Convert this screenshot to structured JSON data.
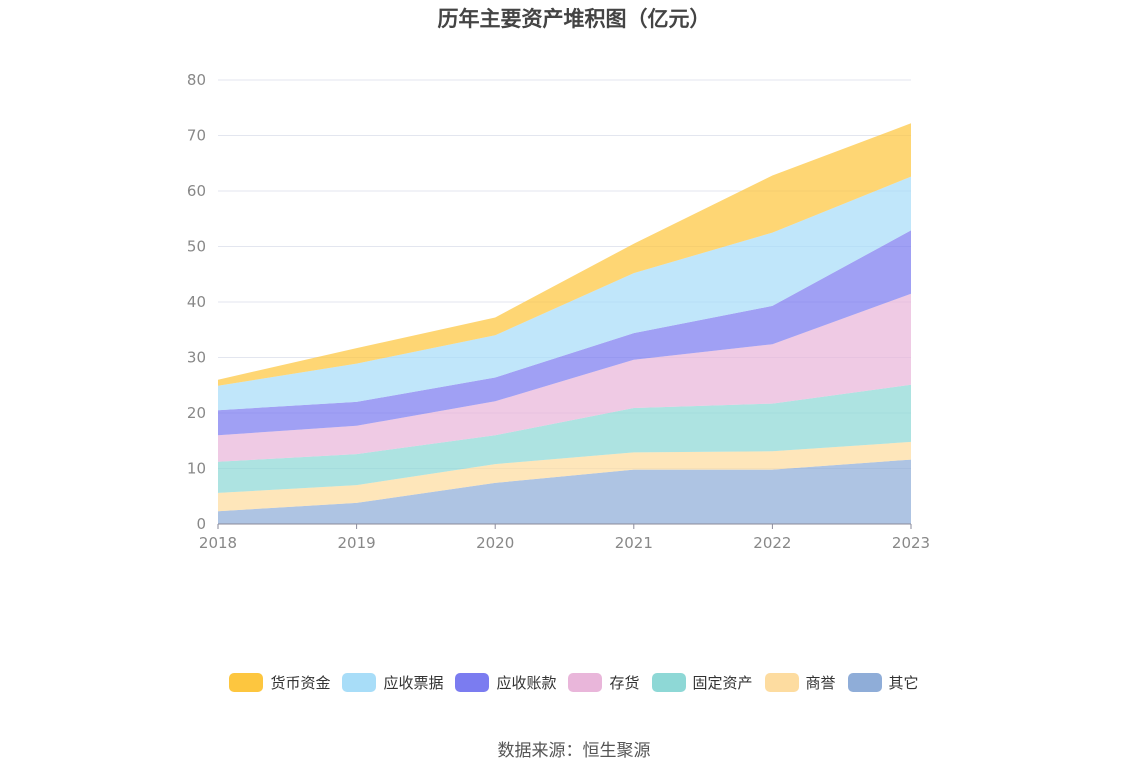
{
  "chart_data": {
    "type": "area",
    "stacked": true,
    "title": "历年主要资产堆积图（亿元）",
    "categories": [
      "2018",
      "2019",
      "2020",
      "2021",
      "2022",
      "2023"
    ],
    "ylim": [
      0,
      80
    ],
    "yticks": [
      0,
      10,
      20,
      30,
      40,
      50,
      60,
      70,
      80
    ],
    "grid": true,
    "legend_position": "bottom",
    "series": [
      {
        "name": "其它",
        "color": "#8fadd8",
        "values": [
          2.3,
          3.8,
          7.4,
          9.8,
          9.8,
          11.6
        ]
      },
      {
        "name": "商誉",
        "color": "#fddca0",
        "values": [
          3.3,
          3.2,
          3.4,
          3.1,
          3.3,
          3.2
        ]
      },
      {
        "name": "固定资产",
        "color": "#8ed8d6",
        "values": [
          5.6,
          5.6,
          5.2,
          8.0,
          8.6,
          10.3
        ]
      },
      {
        "name": "存货",
        "color": "#e9b6da",
        "values": [
          4.8,
          5.1,
          6.1,
          8.7,
          10.7,
          16.4
        ]
      },
      {
        "name": "应收账款",
        "color": "#7b7cf0",
        "values": [
          4.5,
          4.3,
          4.3,
          4.8,
          6.9,
          11.4
        ]
      },
      {
        "name": "应收票据",
        "color": "#a8ddf8",
        "values": [
          4.4,
          6.9,
          7.6,
          10.8,
          13.2,
          9.7
        ]
      },
      {
        "name": "货币资金",
        "color": "#fdc63f",
        "values": [
          1.1,
          2.8,
          3.2,
          5.3,
          10.3,
          9.6
        ]
      }
    ]
  },
  "legend_order": [
    "货币资金",
    "应收票据",
    "应收账款",
    "存货",
    "固定资产",
    "商誉",
    "其它"
  ],
  "source": "数据来源：恒生聚源"
}
